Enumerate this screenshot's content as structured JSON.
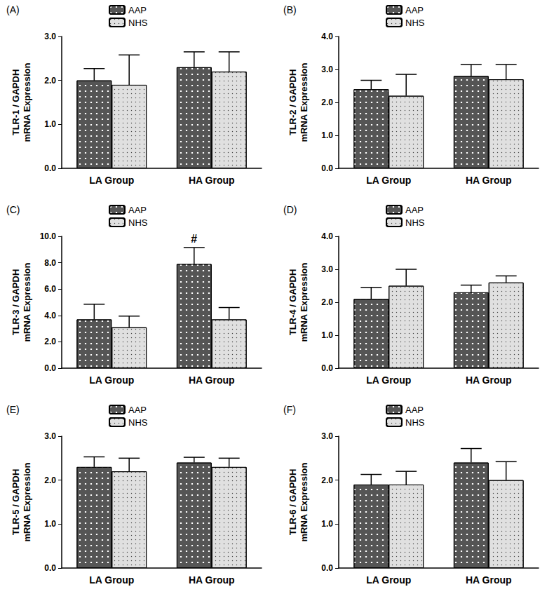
{
  "chart_data": [
    {
      "type": "bar",
      "title": "(A)",
      "y_label": "TLR-1 / GAPDH\nmRNA Expression",
      "categories": [
        "LA Group",
        "HA Group"
      ],
      "series": [
        {
          "name": "AAP",
          "color": "#555555",
          "values": [
            2.0,
            2.3
          ],
          "errors": [
            0.27,
            0.35
          ]
        },
        {
          "name": "NHS",
          "color": "#e0e0e0",
          "values": [
            1.9,
            2.2
          ],
          "errors": [
            0.68,
            0.45
          ]
        }
      ],
      "ylim": [
        0,
        3
      ],
      "yticks": [
        {
          "value": 0,
          "label": "0.0"
        },
        {
          "value": 1,
          "label": "1.0"
        },
        {
          "value": 2,
          "label": "2.0"
        },
        {
          "value": 3,
          "label": "3.0"
        }
      ],
      "grid": false,
      "legend": "top"
    },
    {
      "type": "bar",
      "title": "(B)",
      "y_label": "TLR-2 / GAPDH\nmRNA Expression",
      "categories": [
        "LA Group",
        "HA Group"
      ],
      "series": [
        {
          "name": "AAP",
          "color": "#555555",
          "values": [
            2.4,
            2.8
          ],
          "errors": [
            0.27,
            0.35
          ]
        },
        {
          "name": "NHS",
          "color": "#e0e0e0",
          "values": [
            2.2,
            2.7
          ],
          "errors": [
            0.65,
            0.45
          ]
        }
      ],
      "ylim": [
        0,
        4
      ],
      "yticks": [
        {
          "value": 0,
          "label": "0.0"
        },
        {
          "value": 1,
          "label": "1.0"
        },
        {
          "value": 2,
          "label": "2.0"
        },
        {
          "value": 3,
          "label": "3.0"
        },
        {
          "value": 4,
          "label": "4.0"
        }
      ],
      "grid": false,
      "legend": "top"
    },
    {
      "type": "bar",
      "title": "(C)",
      "y_label": "TLR-3 / GAPDH\nmRNA Expression",
      "categories": [
        "LA Group",
        "HA Group"
      ],
      "series": [
        {
          "name": "AAP",
          "color": "#555555",
          "values": [
            3.7,
            7.9
          ],
          "errors": [
            1.15,
            1.25
          ]
        },
        {
          "name": "NHS",
          "color": "#e0e0e0",
          "values": [
            3.1,
            3.7
          ],
          "errors": [
            0.85,
            0.9
          ]
        }
      ],
      "annotations": [
        {
          "text": "#",
          "category": "HA Group",
          "series": "AAP"
        }
      ],
      "ylim": [
        0,
        10
      ],
      "yticks": [
        {
          "value": 0,
          "label": "0.0"
        },
        {
          "value": 2,
          "label": "2.0"
        },
        {
          "value": 4,
          "label": "4.0"
        },
        {
          "value": 6,
          "label": "6.0"
        },
        {
          "value": 8,
          "label": "8.0"
        },
        {
          "value": 10,
          "label": "10.0"
        }
      ],
      "grid": false,
      "legend": "top"
    },
    {
      "type": "bar",
      "title": "(D)",
      "y_label": "TLR-4 / GAPDH\nmRNA Expression",
      "categories": [
        "LA Group",
        "HA Group"
      ],
      "series": [
        {
          "name": "AAP",
          "color": "#555555",
          "values": [
            2.1,
            2.3
          ],
          "errors": [
            0.35,
            0.22
          ]
        },
        {
          "name": "NHS",
          "color": "#e0e0e0",
          "values": [
            2.5,
            2.6
          ],
          "errors": [
            0.5,
            0.2
          ]
        }
      ],
      "ylim": [
        0,
        4
      ],
      "yticks": [
        {
          "value": 0,
          "label": "0.0"
        },
        {
          "value": 1,
          "label": "1.0"
        },
        {
          "value": 2,
          "label": "2.0"
        },
        {
          "value": 3,
          "label": "3.0"
        },
        {
          "value": 4,
          "label": "4.0"
        }
      ],
      "grid": false,
      "legend": "top"
    },
    {
      "type": "bar",
      "title": "(E)",
      "y_label": "TLR-5 / GAPDH\nmRNA Expression",
      "categories": [
        "LA Group",
        "HA Group"
      ],
      "series": [
        {
          "name": "AAP",
          "color": "#555555",
          "values": [
            2.3,
            2.4
          ],
          "errors": [
            0.23,
            0.12
          ]
        },
        {
          "name": "NHS",
          "color": "#e0e0e0",
          "values": [
            2.2,
            2.3
          ],
          "errors": [
            0.3,
            0.2
          ]
        }
      ],
      "ylim": [
        0,
        3
      ],
      "yticks": [
        {
          "value": 0,
          "label": "0.0"
        },
        {
          "value": 1,
          "label": "1.0"
        },
        {
          "value": 2,
          "label": "2.0"
        },
        {
          "value": 3,
          "label": "3.0"
        }
      ],
      "grid": false,
      "legend": "top"
    },
    {
      "type": "bar",
      "title": "(F)",
      "y_label": "TLR-6 / GAPDH\nmRNA Expression",
      "categories": [
        "LA Group",
        "HA Group"
      ],
      "series": [
        {
          "name": "AAP",
          "color": "#555555",
          "values": [
            1.9,
            2.4
          ],
          "errors": [
            0.23,
            0.32
          ]
        },
        {
          "name": "NHS",
          "color": "#e0e0e0",
          "values": [
            1.9,
            2.0
          ],
          "errors": [
            0.3,
            0.42
          ]
        }
      ],
      "ylim": [
        0,
        3
      ],
      "yticks": [
        {
          "value": 0,
          "label": "0.0"
        },
        {
          "value": 1,
          "label": "1.0"
        },
        {
          "value": 2,
          "label": "2.0"
        },
        {
          "value": 3,
          "label": "3.0"
        }
      ],
      "grid": false,
      "legend": "top"
    }
  ]
}
